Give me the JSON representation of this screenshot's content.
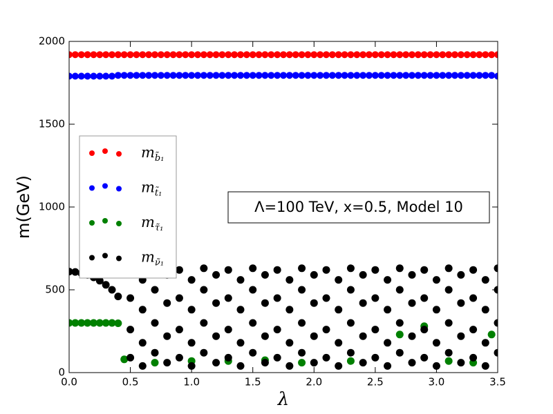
{
  "chart_data": {
    "type": "scatter",
    "x_label": "λ",
    "y_label": "m(GeV)",
    "annotation": "Λ=100 TeV, x=0.5, Model 10",
    "xlim": [
      0,
      3.5
    ],
    "ylim": [
      0,
      2000
    ],
    "xticks": [
      {
        "value": 0,
        "label": "0.0"
      },
      0.5,
      {
        "value": 1,
        "label": "1.0"
      },
      1.5,
      {
        "value": 2,
        "label": "2.0"
      },
      2.5,
      {
        "value": 3,
        "label": "3.0"
      },
      3.5
    ],
    "yticks": [
      0,
      500,
      1000,
      1500,
      2000
    ],
    "legend": "upper left",
    "series": [
      {
        "name": "mb̃₁",
        "color": "#ff0000",
        "x": [
          0,
          0.05,
          0.1,
          0.15,
          0.2,
          0.25,
          0.3,
          0.35,
          0.4,
          0.45,
          0.5,
          0.55,
          0.6,
          0.65,
          0.7,
          0.75,
          0.8,
          0.85,
          0.9,
          0.95,
          1,
          1.05,
          1.1,
          1.15,
          1.2,
          1.25,
          1.3,
          1.35,
          1.4,
          1.45,
          1.5,
          1.55,
          1.6,
          1.65,
          1.7,
          1.75,
          1.8,
          1.85,
          1.9,
          1.95,
          2,
          2.05,
          2.1,
          2.15,
          2.2,
          2.25,
          2.3,
          2.35,
          2.4,
          2.45,
          2.5,
          2.55,
          2.6,
          2.65,
          2.7,
          2.75,
          2.8,
          2.85,
          2.9,
          2.95,
          3,
          3.05,
          3.1,
          3.15,
          3.2,
          3.25,
          3.3,
          3.35,
          3.4,
          3.45,
          3.5
        ],
        "values": [
          1920,
          1920,
          1920,
          1920,
          1920,
          1920,
          1920,
          1920,
          1920,
          1920,
          1920,
          1920,
          1920,
          1920,
          1920,
          1920,
          1920,
          1920,
          1920,
          1920,
          1920,
          1920,
          1920,
          1920,
          1920,
          1920,
          1920,
          1920,
          1920,
          1920,
          1920,
          1920,
          1920,
          1920,
          1920,
          1920,
          1920,
          1920,
          1920,
          1920,
          1920,
          1920,
          1920,
          1920,
          1920,
          1920,
          1920,
          1920,
          1920,
          1920,
          1920,
          1920,
          1920,
          1920,
          1920,
          1920,
          1920,
          1920,
          1920,
          1920,
          1920,
          1920,
          1920,
          1920,
          1920,
          1920,
          1920,
          1920,
          1920,
          1920,
          1920
        ]
      },
      {
        "name": "mt̃₁",
        "color": "#0000ff",
        "x": [
          0,
          0.05,
          0.1,
          0.15,
          0.2,
          0.25,
          0.3,
          0.35,
          0.4,
          0.45,
          0.5,
          0.55,
          0.6,
          0.65,
          0.7,
          0.75,
          0.8,
          0.85,
          0.9,
          0.95,
          1,
          1.05,
          1.1,
          1.15,
          1.2,
          1.25,
          1.3,
          1.35,
          1.4,
          1.45,
          1.5,
          1.55,
          1.6,
          1.65,
          1.7,
          1.75,
          1.8,
          1.85,
          1.9,
          1.95,
          2,
          2.05,
          2.1,
          2.15,
          2.2,
          2.25,
          2.3,
          2.35,
          2.4,
          2.45,
          2.5,
          2.55,
          2.6,
          2.65,
          2.7,
          2.75,
          2.8,
          2.85,
          2.9,
          2.95,
          3,
          3.05,
          3.1,
          3.15,
          3.2,
          3.25,
          3.3,
          3.35,
          3.4,
          3.45,
          3.5
        ],
        "values": [
          1790,
          1790,
          1790,
          1790,
          1790,
          1790,
          1790,
          1790,
          1795,
          1795,
          1795,
          1795,
          1795,
          1795,
          1795,
          1795,
          1795,
          1795,
          1795,
          1795,
          1795,
          1795,
          1795,
          1795,
          1795,
          1795,
          1795,
          1795,
          1795,
          1795,
          1795,
          1795,
          1795,
          1795,
          1795,
          1795,
          1795,
          1795,
          1795,
          1795,
          1795,
          1795,
          1795,
          1795,
          1795,
          1795,
          1795,
          1795,
          1795,
          1795,
          1795,
          1795,
          1795,
          1795,
          1795,
          1795,
          1795,
          1795,
          1795,
          1795,
          1795,
          1795,
          1795,
          1795,
          1795,
          1795,
          1795,
          1795,
          1795,
          1795,
          1790
        ]
      },
      {
        "name": "mτ̃₁",
        "color": "#008000",
        "x": [
          0,
          0.05,
          0.1,
          0.15,
          0.2,
          0.25,
          0.3,
          0.35,
          0.4,
          0.45,
          0.7,
          1,
          1.3,
          1.6,
          1.9,
          2.3,
          2.7,
          2.9,
          3.1,
          3.3,
          3.45
        ],
        "values": [
          300,
          300,
          300,
          300,
          300,
          300,
          300,
          300,
          298,
          80,
          60,
          70,
          70,
          75,
          60,
          70,
          230,
          280,
          70,
          60,
          230
        ]
      },
      {
        "name": "mν̃₁",
        "color": "#000000",
        "x": [
          0,
          0.05,
          0.1,
          0.15,
          0.2,
          0.25,
          0.3,
          0.35,
          0.4,
          0.5,
          0.5,
          0.5,
          0.5,
          0.6,
          0.6,
          0.6,
          0.6,
          0.7,
          0.7,
          0.7,
          0.7,
          0.8,
          0.8,
          0.8,
          0.8,
          0.9,
          0.9,
          0.9,
          0.9,
          1,
          1,
          1,
          1,
          1.1,
          1.1,
          1.1,
          1.1,
          1.2,
          1.2,
          1.2,
          1.2,
          1.3,
          1.3,
          1.3,
          1.3,
          1.4,
          1.4,
          1.4,
          1.4,
          1.5,
          1.5,
          1.5,
          1.5,
          1.6,
          1.6,
          1.6,
          1.6,
          1.7,
          1.7,
          1.7,
          1.7,
          1.8,
          1.8,
          1.8,
          1.8,
          1.9,
          1.9,
          1.9,
          1.9,
          2,
          2,
          2,
          2,
          2.1,
          2.1,
          2.1,
          2.1,
          2.2,
          2.2,
          2.2,
          2.2,
          2.3,
          2.3,
          2.3,
          2.3,
          2.4,
          2.4,
          2.4,
          2.4,
          2.5,
          2.5,
          2.5,
          2.5,
          2.6,
          2.6,
          2.6,
          2.6,
          2.7,
          2.7,
          2.7,
          2.7,
          2.8,
          2.8,
          2.8,
          2.8,
          2.9,
          2.9,
          2.9,
          2.9,
          3,
          3,
          3,
          3,
          3.1,
          3.1,
          3.1,
          3.1,
          3.2,
          3.2,
          3.2,
          3.2,
          3.3,
          3.3,
          3.3,
          3.3,
          3.4,
          3.4,
          3.4,
          3.4,
          3.5,
          3.5,
          3.5,
          3.5
        ],
        "values": [
          610,
          608,
          600,
          590,
          575,
          555,
          530,
          500,
          460,
          620,
          450,
          260,
          90,
          560,
          380,
          180,
          40,
          630,
          500,
          300,
          120,
          590,
          420,
          220,
          60,
          620,
          450,
          260,
          90,
          560,
          380,
          180,
          40,
          630,
          500,
          300,
          120,
          590,
          420,
          220,
          60,
          620,
          450,
          260,
          90,
          560,
          380,
          180,
          40,
          630,
          500,
          300,
          120,
          590,
          420,
          220,
          60,
          620,
          450,
          260,
          90,
          560,
          380,
          180,
          40,
          630,
          500,
          300,
          120,
          590,
          420,
          220,
          60,
          620,
          450,
          260,
          90,
          560,
          380,
          180,
          40,
          630,
          500,
          300,
          120,
          590,
          420,
          220,
          60,
          620,
          450,
          260,
          90,
          560,
          380,
          180,
          40,
          630,
          500,
          300,
          120,
          590,
          420,
          220,
          60,
          620,
          450,
          260,
          90,
          560,
          380,
          180,
          40,
          630,
          500,
          300,
          120,
          590,
          420,
          220,
          60,
          620,
          450,
          260,
          90,
          560,
          380,
          180,
          40,
          630,
          500,
          300,
          120
        ]
      }
    ]
  }
}
